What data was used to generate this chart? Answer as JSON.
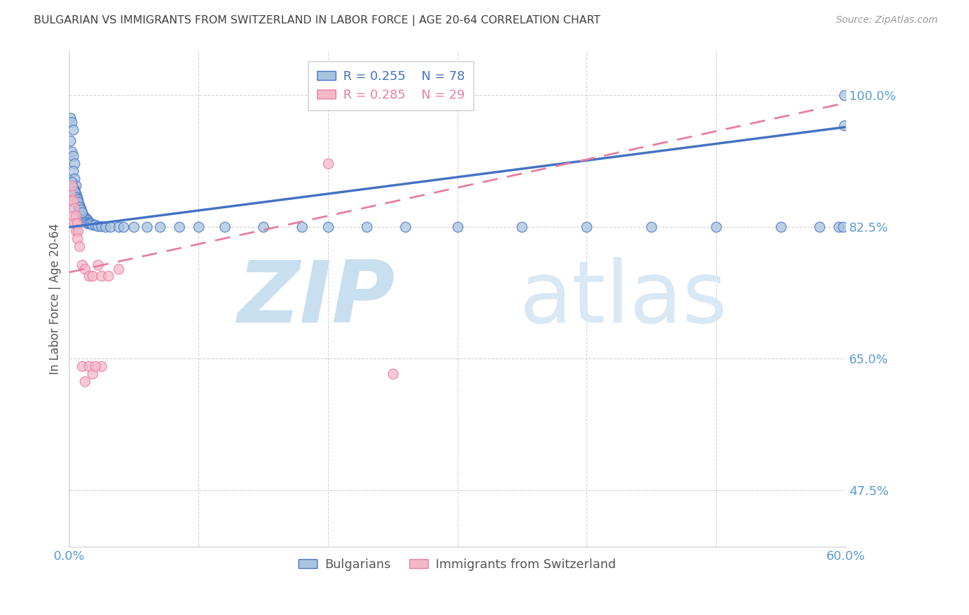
{
  "title": "BULGARIAN VS IMMIGRANTS FROM SWITZERLAND IN LABOR FORCE | AGE 20-64 CORRELATION CHART",
  "source": "Source: ZipAtlas.com",
  "ylabel": "In Labor Force | Age 20-64",
  "yticks": [
    0.475,
    0.65,
    0.825,
    1.0
  ],
  "ytick_labels": [
    "47.5%",
    "65.0%",
    "82.5%",
    "100.0%"
  ],
  "legend_blue_r": "R = 0.255",
  "legend_blue_n": "N = 78",
  "legend_pink_r": "R = 0.285",
  "legend_pink_n": "N = 29",
  "blue_color": "#a8c4e0",
  "pink_color": "#f4b8c8",
  "blue_line_color": "#4472C4",
  "pink_line_color": "#e87ca0",
  "axis_label_color": "#5b9bd5",
  "title_color": "#404040",
  "watermark_zip": "ZIP",
  "watermark_atlas": "atlas",
  "blue_scatter_x": [
    0.001,
    0.002,
    0.001,
    0.003,
    0.002,
    0.003,
    0.004,
    0.003,
    0.004,
    0.005,
    0.004,
    0.005,
    0.006,
    0.005,
    0.006,
    0.007,
    0.006,
    0.007,
    0.008,
    0.007,
    0.008,
    0.009,
    0.008,
    0.009,
    0.01,
    0.009,
    0.01,
    0.011,
    0.01,
    0.011,
    0.012,
    0.013,
    0.012,
    0.014,
    0.013,
    0.015,
    0.014,
    0.016,
    0.017,
    0.018,
    0.02,
    0.022,
    0.025,
    0.028,
    0.032,
    0.038,
    0.042,
    0.05,
    0.06,
    0.07,
    0.085,
    0.1,
    0.12,
    0.15,
    0.18,
    0.2,
    0.23,
    0.26,
    0.3,
    0.35,
    0.4,
    0.45,
    0.5,
    0.55,
    0.58,
    0.595,
    0.598,
    0.599,
    0.002,
    0.003,
    0.004,
    0.005,
    0.006,
    0.007,
    0.008,
    0.009,
    0.01,
    0.599
  ],
  "blue_scatter_y": [
    0.97,
    0.965,
    0.94,
    0.955,
    0.925,
    0.92,
    0.91,
    0.9,
    0.89,
    0.88,
    0.875,
    0.87,
    0.865,
    0.86,
    0.86,
    0.86,
    0.858,
    0.855,
    0.855,
    0.852,
    0.85,
    0.85,
    0.848,
    0.845,
    0.845,
    0.842,
    0.842,
    0.84,
    0.84,
    0.838,
    0.838,
    0.836,
    0.835,
    0.835,
    0.832,
    0.832,
    0.83,
    0.83,
    0.83,
    0.828,
    0.828,
    0.826,
    0.826,
    0.825,
    0.825,
    0.825,
    0.825,
    0.825,
    0.825,
    0.825,
    0.825,
    0.825,
    0.825,
    0.825,
    0.825,
    0.825,
    0.825,
    0.825,
    0.825,
    0.825,
    0.825,
    0.825,
    0.825,
    0.825,
    0.825,
    0.825,
    0.825,
    1.0,
    0.885,
    0.878,
    0.872,
    0.865,
    0.862,
    0.858,
    0.852,
    0.848,
    0.845,
    0.96
  ],
  "pink_scatter_x": [
    0.001,
    0.002,
    0.001,
    0.003,
    0.003,
    0.004,
    0.005,
    0.004,
    0.006,
    0.005,
    0.007,
    0.006,
    0.008,
    0.01,
    0.012,
    0.015,
    0.018,
    0.022,
    0.025,
    0.03,
    0.038,
    0.025,
    0.01,
    0.012,
    0.015,
    0.018,
    0.02,
    0.25,
    0.2
  ],
  "pink_scatter_y": [
    0.87,
    0.88,
    0.86,
    0.86,
    0.84,
    0.85,
    0.84,
    0.83,
    0.83,
    0.82,
    0.82,
    0.81,
    0.8,
    0.775,
    0.77,
    0.76,
    0.76,
    0.775,
    0.76,
    0.76,
    0.77,
    0.64,
    0.64,
    0.62,
    0.64,
    0.63,
    0.64,
    0.63,
    0.91
  ],
  "blue_trend_x": [
    0.0,
    0.6
  ],
  "blue_trend_y": [
    0.825,
    0.958
  ],
  "pink_trend_x": [
    0.0,
    0.6
  ],
  "pink_trend_y": [
    0.765,
    0.99
  ],
  "xmin": 0.0,
  "xmax": 0.6,
  "ymin": 0.4,
  "ymax": 1.06,
  "xtick_positions": [
    0.0,
    0.1,
    0.2,
    0.3,
    0.4,
    0.5,
    0.6
  ],
  "xtick_labels_show": [
    "0.0%",
    "",
    "",
    "",
    "",
    "",
    "60.0%"
  ],
  "grid_color": "#d0d0d0",
  "watermark_color_zip": "#c8dff0",
  "watermark_color_atlas": "#d8e8f4"
}
